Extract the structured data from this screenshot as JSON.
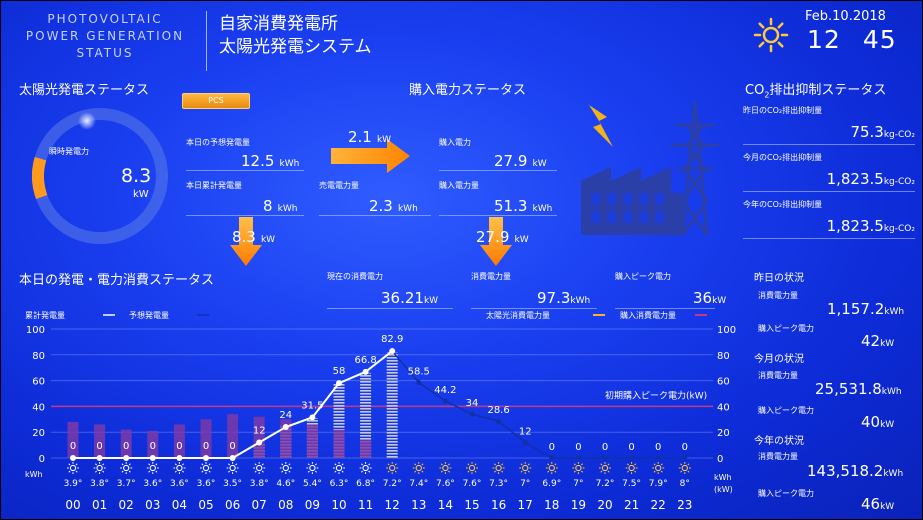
{
  "header": {
    "brand_line1": "PHOTOVOLTAIC",
    "brand_line2": "POWER GENERATION",
    "brand_line3": "STATUS",
    "title_line1": "自家消費発電所",
    "title_line2": "太陽光発電システム",
    "date": "Feb.10.2018",
    "hour": "12",
    "minute": "45",
    "weather_icon": "sun-icon"
  },
  "solar": {
    "title": "太陽光発電ステータス",
    "pcs_label": "PCS",
    "instant_label": "瞬時発電力",
    "instant_value": "8.3",
    "instant_unit": "kW",
    "gauge_fraction": 0.1,
    "forecast_label": "本日の予想発電量",
    "forecast_value": "12.5",
    "forecast_unit": "kWh",
    "cumulative_label": "本日累計発電量",
    "cumulative_value": "8",
    "cumulative_unit": "kWh",
    "down_value": "8.3",
    "down_unit": "kW"
  },
  "purchase": {
    "title": "購入電力ステータス",
    "flow_value": "2.1",
    "flow_unit": "kW",
    "sell_label": "売電電力量",
    "sell_value": "2.3",
    "sell_unit": "kWh",
    "power_label": "購入電力",
    "power_value": "27.9",
    "power_unit": "kW",
    "amount_label": "購入電力量",
    "amount_value": "51.3",
    "amount_unit": "kWh",
    "down_value": "27.9",
    "down_unit": "kW"
  },
  "co2": {
    "title_pre": "CO",
    "title_sub": "2",
    "title_post": "排出抑制ステータス",
    "rows": [
      {
        "label": "昨日のCO₂排出抑制量",
        "value": "75.3",
        "unit": "kg-CO₂"
      },
      {
        "label": "今月のCO₂排出抑制量",
        "value": "1,823.5",
        "unit": "kg-CO₂"
      },
      {
        "label": "今年のCO₂排出抑制量",
        "value": "1,823.5",
        "unit": "kg-CO₂"
      }
    ]
  },
  "today": {
    "title": "本日の発電・電力消費ステータス",
    "current_label": "現在の消費電力",
    "current_value": "36.21",
    "current_unit": "kW",
    "consumption_label": "消費電力量",
    "consumption_value": "97.3",
    "consumption_unit": "kWh",
    "peak_label": "購入ピーク電力",
    "peak_value": "36",
    "peak_unit": "kW"
  },
  "history": {
    "yesterday_title": "昨日の状況",
    "month_title": "今月の状況",
    "year_title": "今年の状況",
    "consumption_label": "消費電力量",
    "peak_label": "購入ピーク電力",
    "yesterday_consumption": "1,157.2",
    "yesterday_peak": "42",
    "month_consumption": "25,531.8",
    "month_peak": "40",
    "year_consumption": "143,518.2",
    "year_peak": "46",
    "kwh_unit": "kWh",
    "kw_unit": "kW"
  },
  "chart_data": {
    "type": "bar",
    "legend": {
      "cumulative": "累計発電量",
      "forecast": "予想発電量",
      "solar_consumed": "太陽光消費電力量",
      "purchased_consumed": "購入消費電力量"
    },
    "peak_line_label": "初期購入ピーク電力(kW)",
    "peak_line_value": 40,
    "ylim": [
      0,
      100
    ],
    "y_ticks": [
      "0",
      "20",
      "40",
      "60",
      "80",
      "100"
    ],
    "left_unit": "kWh",
    "right_unit_1": "kWh",
    "right_unit_2": "(kW)",
    "hours": [
      "00",
      "01",
      "02",
      "03",
      "04",
      "05",
      "06",
      "07",
      "08",
      "09",
      "10",
      "11",
      "12",
      "13",
      "14",
      "15",
      "16",
      "17",
      "18",
      "19",
      "20",
      "21",
      "22",
      "23"
    ],
    "temps": [
      "3.9°",
      "3.8°",
      "3.7°",
      "3.6°",
      "3.6°",
      "3.6°",
      "3.5°",
      "3.8°",
      "4.6°",
      "5.4°",
      "6.3°",
      "6.8°",
      "7.2°",
      "7.4°",
      "7.6°",
      "7.6°",
      "7.3°",
      "7°",
      "6.9°",
      "7°",
      "7.2°",
      "7.5°",
      "7.9°",
      "8°"
    ],
    "weather": [
      "sun",
      "sun",
      "sun",
      "sun",
      "sun",
      "sun",
      "sun",
      "sun",
      "sun",
      "sun",
      "sun",
      "sun",
      "sun",
      "sun",
      "sun",
      "sun",
      "sun",
      "sun",
      "sun",
      "sun",
      "sun",
      "sun",
      "sun",
      "sun"
    ],
    "solar_consumed": [
      0,
      0,
      0,
      0,
      0,
      0,
      0,
      12,
      25,
      31,
      58,
      66,
      82,
      null,
      null,
      null,
      null,
      null,
      null,
      null,
      null,
      null,
      null,
      null
    ],
    "purchased_consumed": [
      28,
      26,
      22,
      21,
      26,
      30,
      34,
      32,
      30,
      26,
      22,
      14,
      null,
      null,
      null,
      null,
      null,
      null,
      null,
      null,
      null,
      null,
      null,
      null
    ],
    "cumulative": [
      0,
      0,
      0,
      0,
      0,
      0,
      0,
      12,
      24,
      31.5,
      58,
      66.8,
      82.9,
      null,
      null,
      null,
      null,
      null,
      null,
      null,
      null,
      null,
      null,
      null
    ],
    "cumulative_labels": [
      "0",
      "0",
      "0",
      "0",
      "0",
      "0",
      "0",
      "12",
      "24",
      "31.5",
      "58",
      "66.8",
      "82.9",
      "",
      "",
      "",
      "",
      "",
      "",
      "",
      "",
      "",
      "",
      ""
    ],
    "forecast": [
      null,
      null,
      null,
      null,
      null,
      null,
      null,
      null,
      null,
      null,
      null,
      null,
      82.9,
      58.5,
      44.2,
      34,
      28.6,
      12,
      0,
      0,
      0,
      0,
      0,
      0
    ],
    "forecast_labels": [
      "",
      "",
      "",
      "",
      "",
      "",
      "",
      "",
      "",
      "",
      "",
      "",
      "",
      "58.5",
      "44.2",
      "34",
      "28.6",
      "12",
      "0",
      "0",
      "0",
      "0",
      "0",
      "0"
    ]
  }
}
